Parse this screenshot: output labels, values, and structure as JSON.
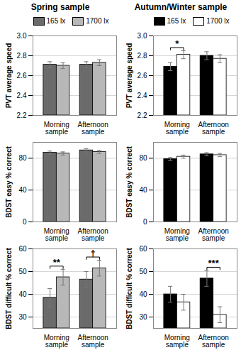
{
  "chart_data": [
    {
      "type": "bar",
      "title": "Spring sample",
      "legend": "top",
      "grid": true,
      "y_label": "PVT average speed",
      "categories": [
        "Morning sample",
        "Afternoon sample"
      ],
      "ylim": [
        2.2,
        3
      ],
      "yticks": [
        2.2,
        2.4,
        2.6,
        2.8,
        {
          "value": 3,
          "label": "3.0"
        }
      ],
      "series": [
        {
          "name": "165 lx",
          "color": "#6b6b6b",
          "values": [
            2.71,
            2.71
          ],
          "errors": [
            0.03,
            0.03
          ]
        },
        {
          "name": "1700 lx",
          "color": "#b8b8b8",
          "values": [
            2.7,
            2.73
          ],
          "errors": [
            0.03,
            0.03
          ]
        }
      ]
    },
    {
      "type": "bar",
      "grid": true,
      "y_label": "BDST easy % correct",
      "categories": [
        "Morning sample",
        "Afternoon sample"
      ],
      "ylim": [
        0,
        100
      ],
      "yticks": [
        0,
        40,
        80
      ],
      "series": [
        {
          "name": "165 lx",
          "color": "#6b6b6b",
          "values": [
            87,
            90
          ],
          "errors": [
            2,
            2
          ]
        },
        {
          "name": "1700 lx",
          "color": "#b8b8b8",
          "values": [
            86,
            88
          ],
          "errors": [
            2,
            2
          ]
        }
      ]
    },
    {
      "type": "bar",
      "grid": true,
      "y_label": "BDST difficult % correct",
      "categories": [
        "Morning sample",
        "Afternoon sample"
      ],
      "ylim": [
        25,
        60
      ],
      "yticks": [
        30,
        40,
        50,
        60
      ],
      "series": [
        {
          "name": "165 lx",
          "color": "#6b6b6b",
          "values": [
            38.5,
            46.5
          ],
          "errors": [
            4,
            3.5
          ]
        },
        {
          "name": "1700 lx",
          "color": "#b8b8b8",
          "values": [
            47.5,
            51.5
          ],
          "errors": [
            3.5,
            3.5
          ]
        }
      ],
      "annotations": [
        {
          "text": "**",
          "category": "Morning sample"
        },
        {
          "text": "†",
          "category": "Afternoon sample"
        }
      ]
    },
    {
      "type": "bar",
      "title": "Autumn/Winter sample",
      "legend": "top",
      "grid": true,
      "y_label": "PVT average speed",
      "categories": [
        "Morning sample",
        "Afternoon sample"
      ],
      "ylim": [
        2.2,
        3
      ],
      "yticks": [
        2.2,
        2.4,
        2.6,
        2.8,
        {
          "value": 3,
          "label": "3.0"
        }
      ],
      "series": [
        {
          "name": "165 lx",
          "color": "#000000",
          "values": [
            2.69,
            2.8
          ],
          "errors": [
            0.04,
            0.04
          ]
        },
        {
          "name": "1700 lx",
          "color": "#ffffff",
          "values": [
            2.81,
            2.77
          ],
          "errors": [
            0.04,
            0.04
          ]
        }
      ],
      "annotations": [
        {
          "text": "*",
          "category": "Morning sample"
        }
      ]
    },
    {
      "type": "bar",
      "grid": true,
      "y_label": "BDST easy % correct",
      "categories": [
        "Morning sample",
        "Afternoon sample"
      ],
      "ylim": [
        0,
        100
      ],
      "yticks": [
        0,
        40,
        80
      ],
      "series": [
        {
          "name": "165 lx",
          "color": "#000000",
          "values": [
            79,
            85
          ],
          "errors": [
            2,
            2
          ]
        },
        {
          "name": "1700 lx",
          "color": "#ffffff",
          "values": [
            82,
            84
          ],
          "errors": [
            2,
            2
          ]
        }
      ]
    },
    {
      "type": "bar",
      "grid": true,
      "y_label": "BDST difficult % correct",
      "categories": [
        "Morning sample",
        "Afternoon sample"
      ],
      "ylim": [
        25,
        60
      ],
      "yticks": [
        30,
        40,
        50,
        60
      ],
      "series": [
        {
          "name": "165 lx",
          "color": "#000000",
          "values": [
            40,
            47
          ],
          "errors": [
            3.5,
            3.5
          ]
        },
        {
          "name": "1700 lx",
          "color": "#ffffff",
          "values": [
            36.5,
            31
          ],
          "errors": [
            3.5,
            3.5
          ]
        }
      ],
      "annotations": [
        {
          "text": "***",
          "category": "Afternoon sample"
        }
      ]
    }
  ]
}
